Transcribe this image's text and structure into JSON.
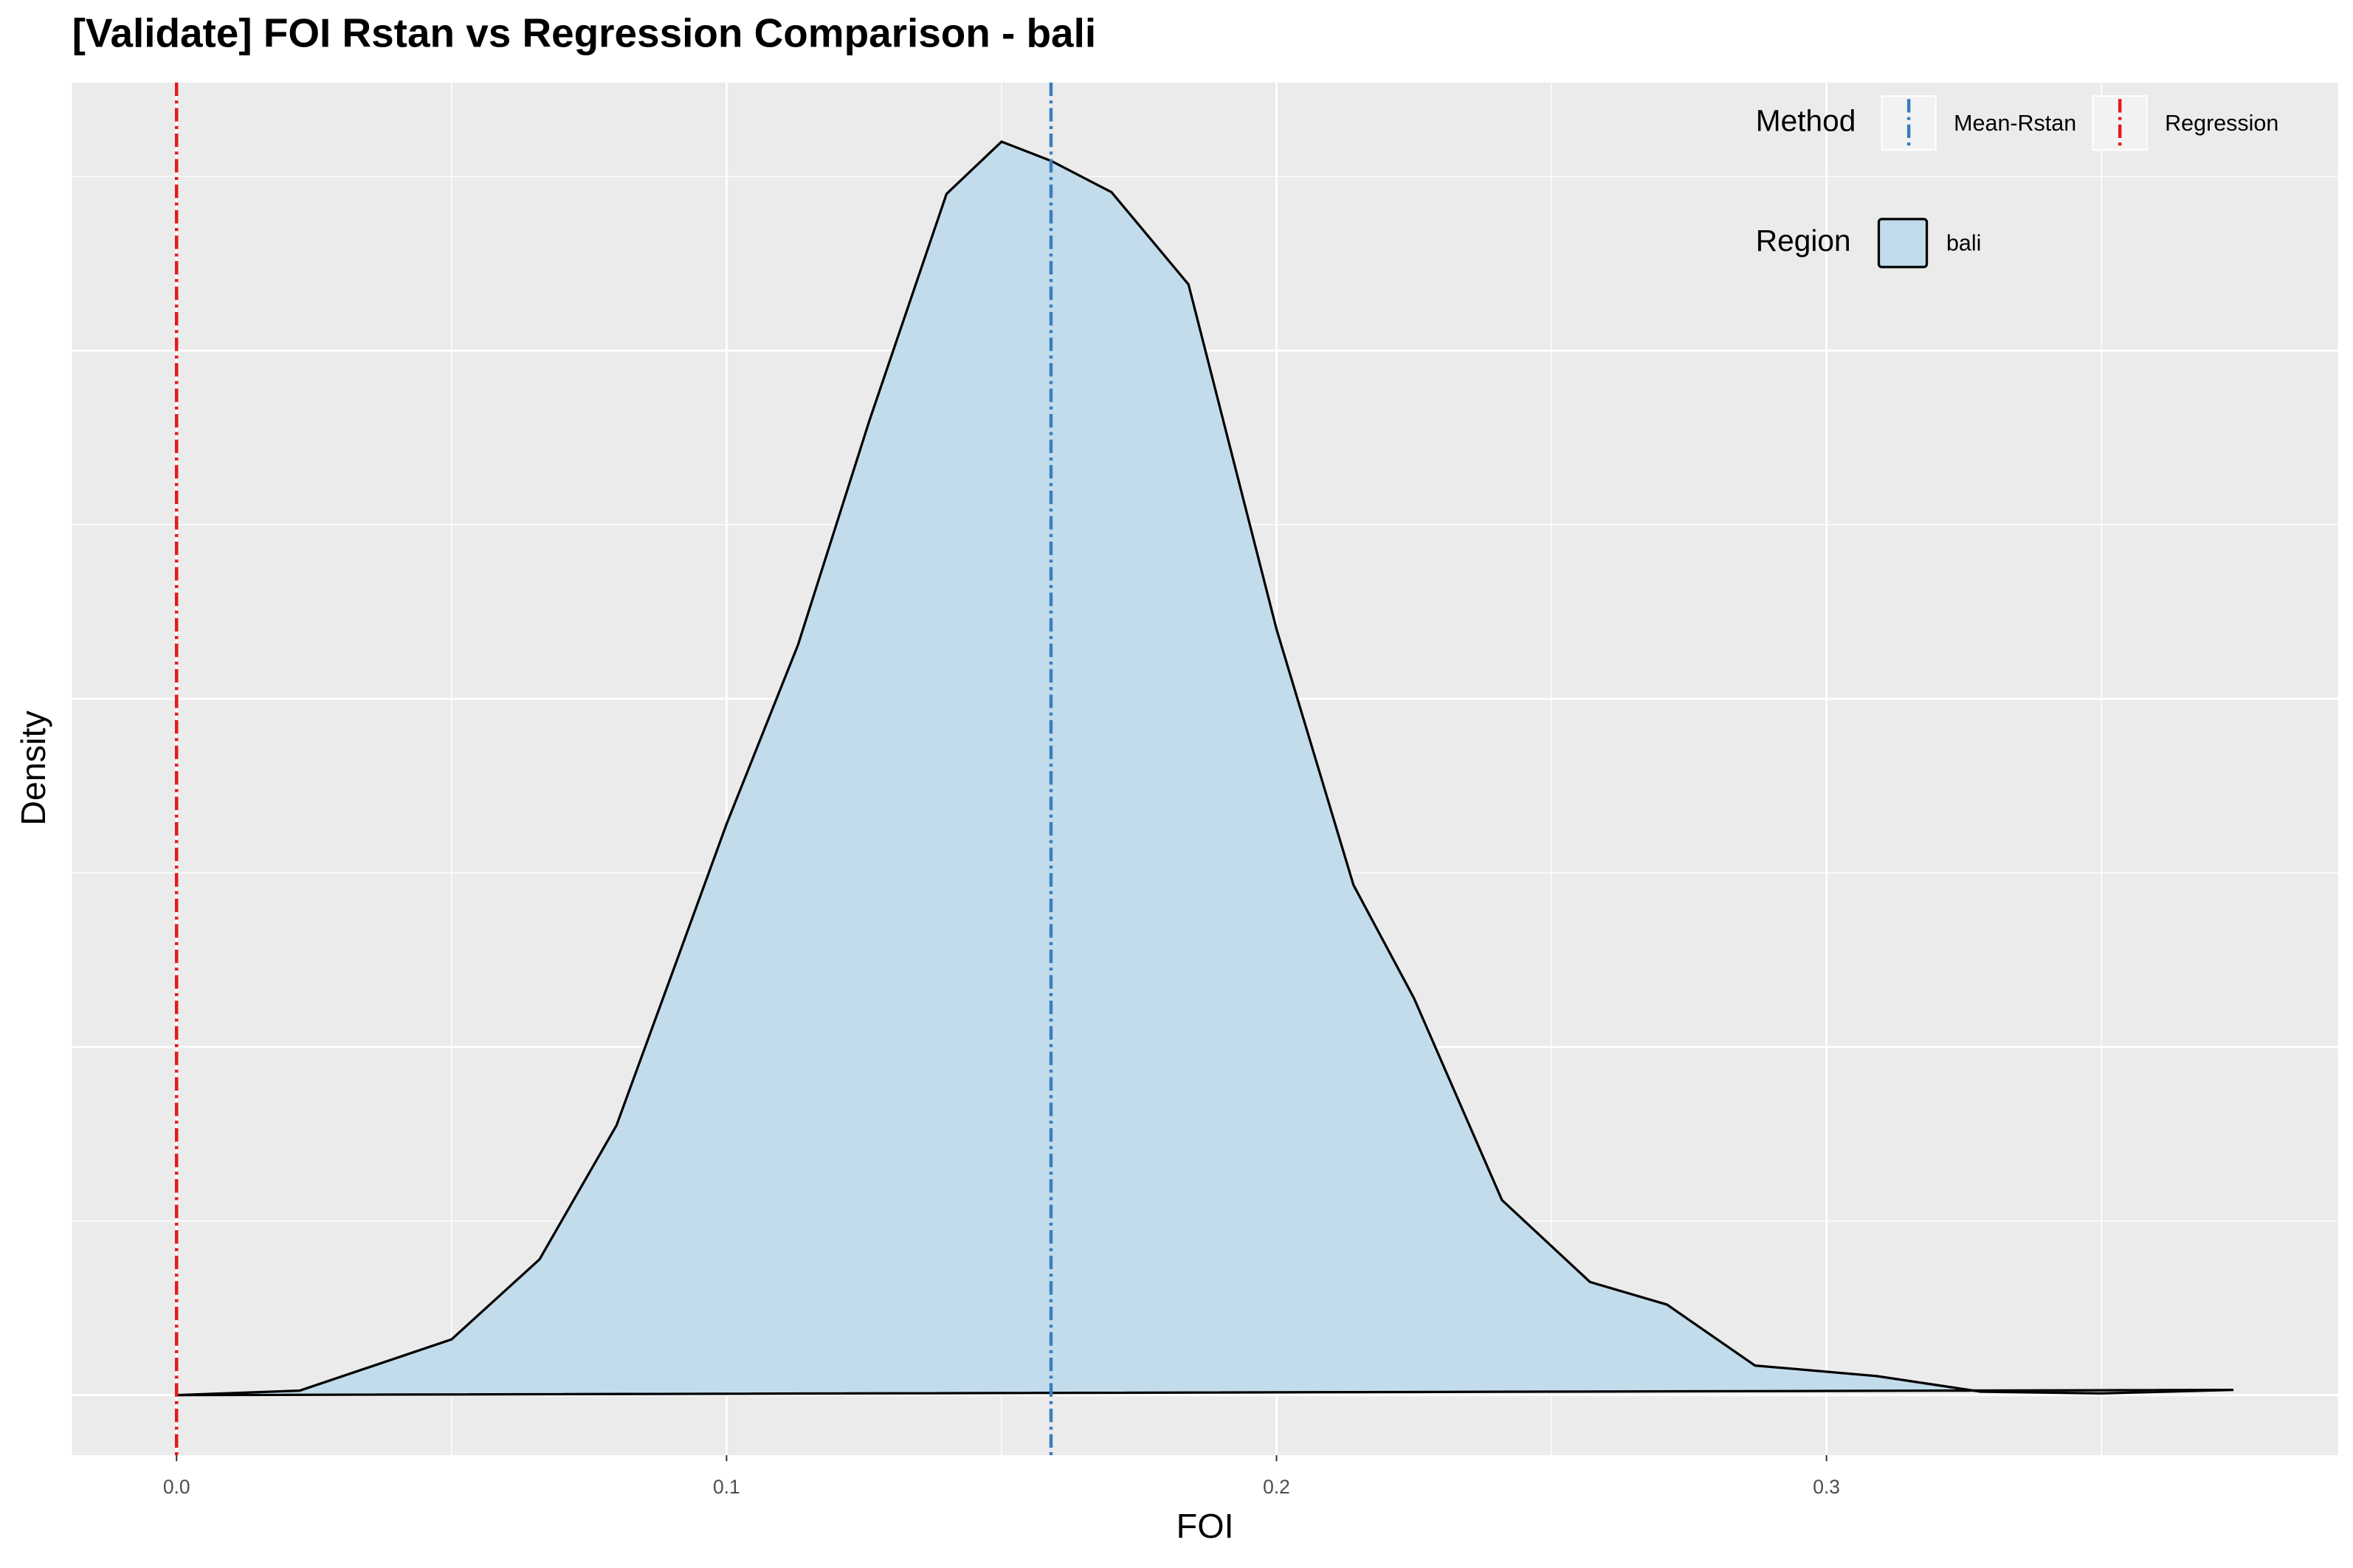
{
  "chart_data": {
    "type": "density",
    "title": "[Validate] FOI Rstan vs Regression Comparison - bali",
    "x_label": "FOI",
    "y_label": "Density",
    "x": [
      0,
      0.0224,
      0.05,
      0.066,
      0.08,
      0.091,
      0.1,
      0.113,
      0.126,
      0.14,
      0.15,
      0.159,
      0.17,
      0.184,
      0.2,
      0.214,
      0.225,
      0.241,
      0.257,
      0.271,
      0.287,
      0.309,
      0.328,
      0.35,
      0.374
    ],
    "series": [
      {
        "name": "bali",
        "color": "#c0dbec",
        "values": [
          0,
          0.026,
          0.32,
          0.78,
          1.55,
          2.5,
          3.28,
          4.31,
          5.6,
          6.9,
          7.2,
          7.09,
          6.91,
          6.38,
          4.4,
          2.93,
          2.28,
          1.12,
          0.65,
          0.52,
          0.17,
          0.11,
          0.02,
          0.01,
          0.03
        ]
      }
    ],
    "vlines": [
      {
        "name": "Mean-Rstan",
        "color": "#3a7ebf",
        "value": 0.159
      },
      {
        "name": "Regression",
        "color": "#e31a1c",
        "value": 0
      }
    ],
    "legend_titles": {
      "color": "Method",
      "fill": "Region"
    },
    "xlim": [
      -0.019,
      0.393
    ],
    "ylim": [
      -0.345,
      7.54
    ],
    "xticks": [
      {
        "value": 0,
        "label": "0.0"
      },
      0.1,
      0.2,
      0.3
    ],
    "yticks": [
      0,
      2,
      4,
      6
    ],
    "grid": true
  }
}
